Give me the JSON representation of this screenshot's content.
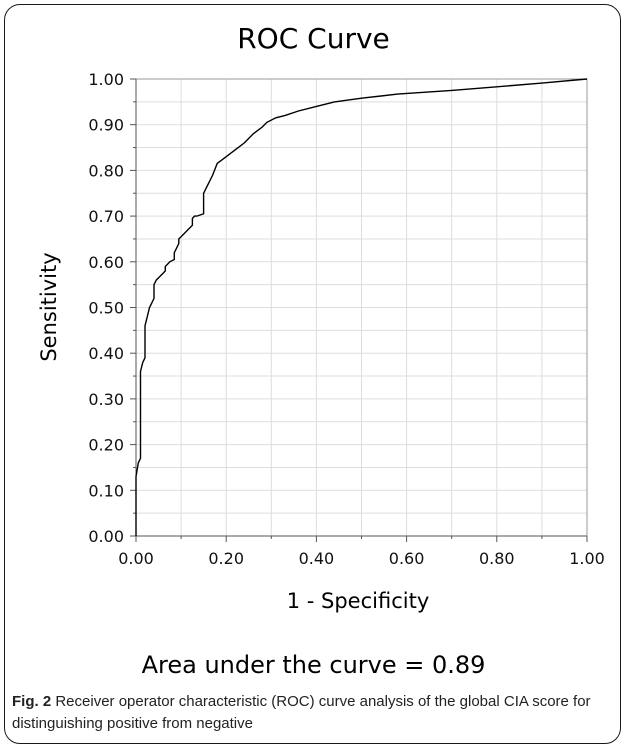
{
  "chart_data": {
    "type": "line",
    "title": "ROC Curve",
    "xlabel": "1 - Specificity",
    "ylabel": "Sensitivity",
    "xlim": [
      0,
      1
    ],
    "ylim": [
      0,
      1
    ],
    "grid": true,
    "xticks": [
      "0.00",
      "0.20",
      "0.40",
      "0.60",
      "0.80",
      "1.00"
    ],
    "yticks": [
      "0.00",
      "0.10",
      "0.20",
      "0.30",
      "0.40",
      "0.50",
      "0.60",
      "0.70",
      "0.80",
      "0.90",
      "1.00"
    ],
    "series": [
      {
        "x": [
          0.0,
          0.0,
          0.005,
          0.01,
          0.01,
          0.015,
          0.02,
          0.02,
          0.025,
          0.03,
          0.035,
          0.04,
          0.04,
          0.045,
          0.05,
          0.055,
          0.06,
          0.065,
          0.065,
          0.07,
          0.075,
          0.085,
          0.085,
          0.09,
          0.095,
          0.095,
          0.1,
          0.105,
          0.11,
          0.115,
          0.125,
          0.125,
          0.13,
          0.135,
          0.15,
          0.15,
          0.16,
          0.17,
          0.18,
          0.2,
          0.22,
          0.24,
          0.26,
          0.28,
          0.29,
          0.31,
          0.33,
          0.36,
          0.4,
          0.44,
          0.5,
          0.58,
          0.7,
          0.8,
          0.9,
          1.0
        ],
        "y": [
          0.0,
          0.13,
          0.16,
          0.17,
          0.36,
          0.38,
          0.39,
          0.46,
          0.48,
          0.5,
          0.51,
          0.52,
          0.55,
          0.56,
          0.565,
          0.57,
          0.575,
          0.58,
          0.59,
          0.595,
          0.6,
          0.605,
          0.62,
          0.63,
          0.64,
          0.65,
          0.655,
          0.66,
          0.665,
          0.67,
          0.68,
          0.695,
          0.7,
          0.7,
          0.705,
          0.75,
          0.77,
          0.79,
          0.815,
          0.83,
          0.845,
          0.86,
          0.88,
          0.895,
          0.905,
          0.915,
          0.92,
          0.93,
          0.94,
          0.95,
          0.958,
          0.967,
          0.975,
          0.983,
          0.991,
          1.0
        ]
      }
    ]
  },
  "auc_text": "Area under the curve = 0.89",
  "caption": {
    "fig_label": "Fig. 2",
    "text": "Receiver operator characteristic (ROC) curve analysis of the global CIA score for distinguishing positive from negative"
  }
}
